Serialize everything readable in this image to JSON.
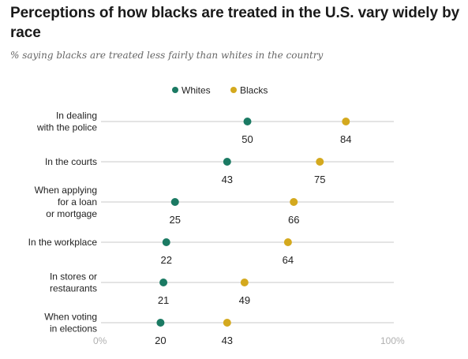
{
  "title": "Perceptions of how blacks are treated in the U.S. vary widely by race",
  "subtitle": "% saying blacks are treated less fairly than whites in the country",
  "colors": {
    "whites": "#1b7a63",
    "blacks": "#d4a91e",
    "gridline": "#c8c8c8"
  },
  "chart_data": {
    "type": "scatter",
    "title": "Perceptions of how blacks are treated in the U.S. vary widely by race",
    "subtitle": "% saying blacks are treated less fairly than whites in the country",
    "xlim": [
      0,
      100
    ],
    "x_tick_labels": [
      "0%",
      "100%"
    ],
    "legend_position": "top",
    "categories": [
      [
        "In dealing",
        "with the police"
      ],
      [
        "In the courts"
      ],
      [
        "When applying",
        "for a loan",
        "or mortgage"
      ],
      [
        "In the workplace"
      ],
      [
        "In stores or",
        "restaurants"
      ],
      [
        "When voting",
        "in elections"
      ]
    ],
    "series": [
      {
        "name": "Whites",
        "color": "#1b7a63",
        "values": [
          50,
          43,
          25,
          22,
          21,
          20
        ]
      },
      {
        "name": "Blacks",
        "color": "#d4a91e",
        "values": [
          84,
          75,
          66,
          64,
          49,
          43
        ]
      }
    ]
  }
}
